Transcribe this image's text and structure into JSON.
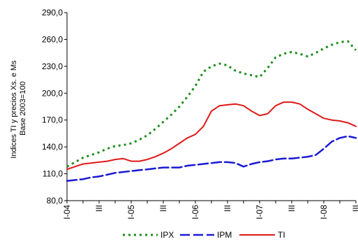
{
  "chart_data": {
    "type": "line",
    "ylabel": "Indices TI y precios Xs. e Ms\nBase 2003=100",
    "ylim": [
      80,
      290
    ],
    "yticks": [
      80,
      110,
      140,
      170,
      200,
      230,
      260,
      290
    ],
    "ytick_labels": [
      "80,0",
      "110,0",
      "140,0",
      "170,0",
      "200,0",
      "230,0",
      "260,0",
      "290,0"
    ],
    "xticks": [
      {
        "x": 0,
        "label": "I-04"
      },
      {
        "x": 2,
        "label": "III"
      },
      {
        "x": 4,
        "label": "I-05"
      },
      {
        "x": 6,
        "label": "III"
      },
      {
        "x": 8,
        "label": "I-06"
      },
      {
        "x": 10,
        "label": "III"
      },
      {
        "x": 12,
        "label": "I-07"
      },
      {
        "x": 14,
        "label": "III"
      },
      {
        "x": 16,
        "label": "I-08"
      },
      {
        "x": 18,
        "label": "III"
      }
    ],
    "xlim": [
      0,
      18
    ],
    "grid": false,
    "legend": "bottom",
    "series": [
      {
        "name": "IPX",
        "color": "#1a8c1a",
        "style": "dotted",
        "x": [
          0,
          0.5,
          1,
          1.5,
          2,
          2.5,
          3,
          3.5,
          4,
          4.5,
          5,
          5.5,
          6,
          6.5,
          7,
          7.5,
          8,
          8.5,
          9,
          9.5,
          10,
          10.5,
          11,
          11.5,
          12,
          12.5,
          13,
          13.5,
          14,
          14.5,
          15,
          15.5,
          16,
          16.5,
          17,
          17.5,
          18
        ],
        "values": [
          118,
          123,
          128,
          131,
          134,
          138,
          141,
          142,
          144,
          148,
          153,
          160,
          168,
          176,
          185,
          196,
          208,
          224,
          230,
          233,
          231,
          225,
          222,
          220,
          218,
          228,
          240,
          244,
          246,
          244,
          241,
          245,
          250,
          254,
          257,
          258,
          248
        ]
      },
      {
        "name": "IPM",
        "color": "#1a1ad4",
        "style": "dashed",
        "x": [
          0,
          0.5,
          1,
          1.5,
          2,
          2.5,
          3,
          3.5,
          4,
          4.5,
          5,
          5.5,
          6,
          6.5,
          7,
          7.5,
          8,
          8.5,
          9,
          9.5,
          10,
          10.5,
          11,
          11.5,
          12,
          12.5,
          13,
          13.5,
          14,
          14.5,
          15,
          15.5,
          16,
          16.5,
          17,
          17.5,
          18
        ],
        "values": [
          102,
          103,
          104,
          106,
          107,
          109,
          111,
          112,
          113,
          114,
          115,
          116,
          117,
          117,
          117,
          119,
          120,
          121,
          122,
          123,
          123,
          122,
          118,
          121,
          123,
          124,
          126,
          127,
          127,
          128,
          129,
          131,
          138,
          146,
          150,
          152,
          150
        ]
      },
      {
        "name": "TI",
        "color": "#e01818",
        "style": "solid",
        "x": [
          0,
          0.5,
          1,
          1.5,
          2,
          2.5,
          3,
          3.5,
          4,
          4.5,
          5,
          5.5,
          6,
          6.5,
          7,
          7.5,
          8,
          8.5,
          9,
          9.5,
          10,
          10.5,
          11,
          11.5,
          12,
          12.5,
          13,
          13.5,
          14,
          14.5,
          15,
          15.5,
          16,
          16.5,
          17,
          17.5,
          18
        ],
        "values": [
          115,
          118,
          121,
          122,
          123,
          124,
          126,
          127,
          124,
          124,
          126,
          129,
          133,
          138,
          144,
          150,
          154,
          163,
          180,
          186,
          187,
          188,
          186,
          180,
          175,
          177,
          186,
          190,
          190,
          188,
          182,
          177,
          172,
          170,
          169,
          167,
          163
        ]
      }
    ]
  }
}
